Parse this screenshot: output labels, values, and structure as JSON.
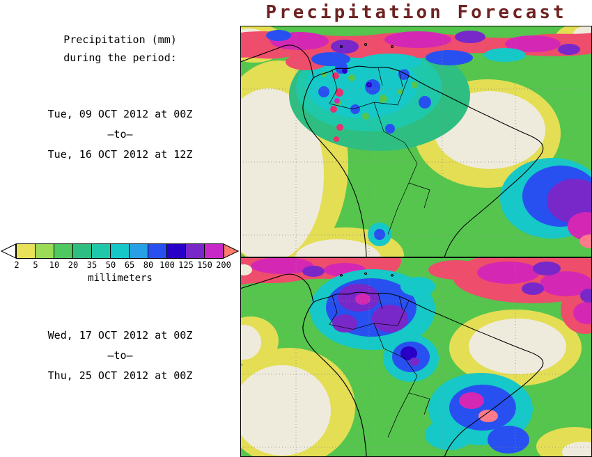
{
  "title": "Precipitation Forecast",
  "colors": {
    "title_text": "#6e2222",
    "body_text": "#000000",
    "map_frame": "#000000",
    "map_background_green": "#55C54E",
    "light_precip_yellow": "#E4DE55",
    "no_precip_cream": "#EFEBDC"
  },
  "left_panel": {
    "heading": [
      "Precipitation (mm)",
      "during the period:"
    ],
    "period1": {
      "start": "Tue, 09 OCT 2012 at 00Z",
      "separator": "–to–",
      "end": "Tue, 16 OCT 2012 at 12Z"
    },
    "period2": {
      "start": "Wed, 17 OCT 2012 at 00Z",
      "separator": "–to–",
      "end": "Thu, 25 OCT 2012 at 00Z"
    },
    "colorbar": {
      "ticks": [
        "2",
        "5",
        "10",
        "20",
        "35",
        "50",
        "65",
        "80",
        "100",
        "125",
        "150",
        "200"
      ],
      "segment_colors": [
        "#E8E25A",
        "#9BDB56",
        "#4FC85F",
        "#2EBE82",
        "#1FC8A8",
        "#16C8C8",
        "#28A0E6",
        "#2850F0",
        "#2800C8",
        "#7828C8",
        "#C828C8"
      ],
      "under_arrow_color": "#FFFFFF",
      "over_arrow_color": "#FF7B6B",
      "unit_label": "millimeters"
    }
  },
  "maps": {
    "top": {
      "description": "Precipitation forecast map, week 1, South America"
    },
    "bottom": {
      "description": "Precipitation forecast map, week 2, South America"
    }
  }
}
